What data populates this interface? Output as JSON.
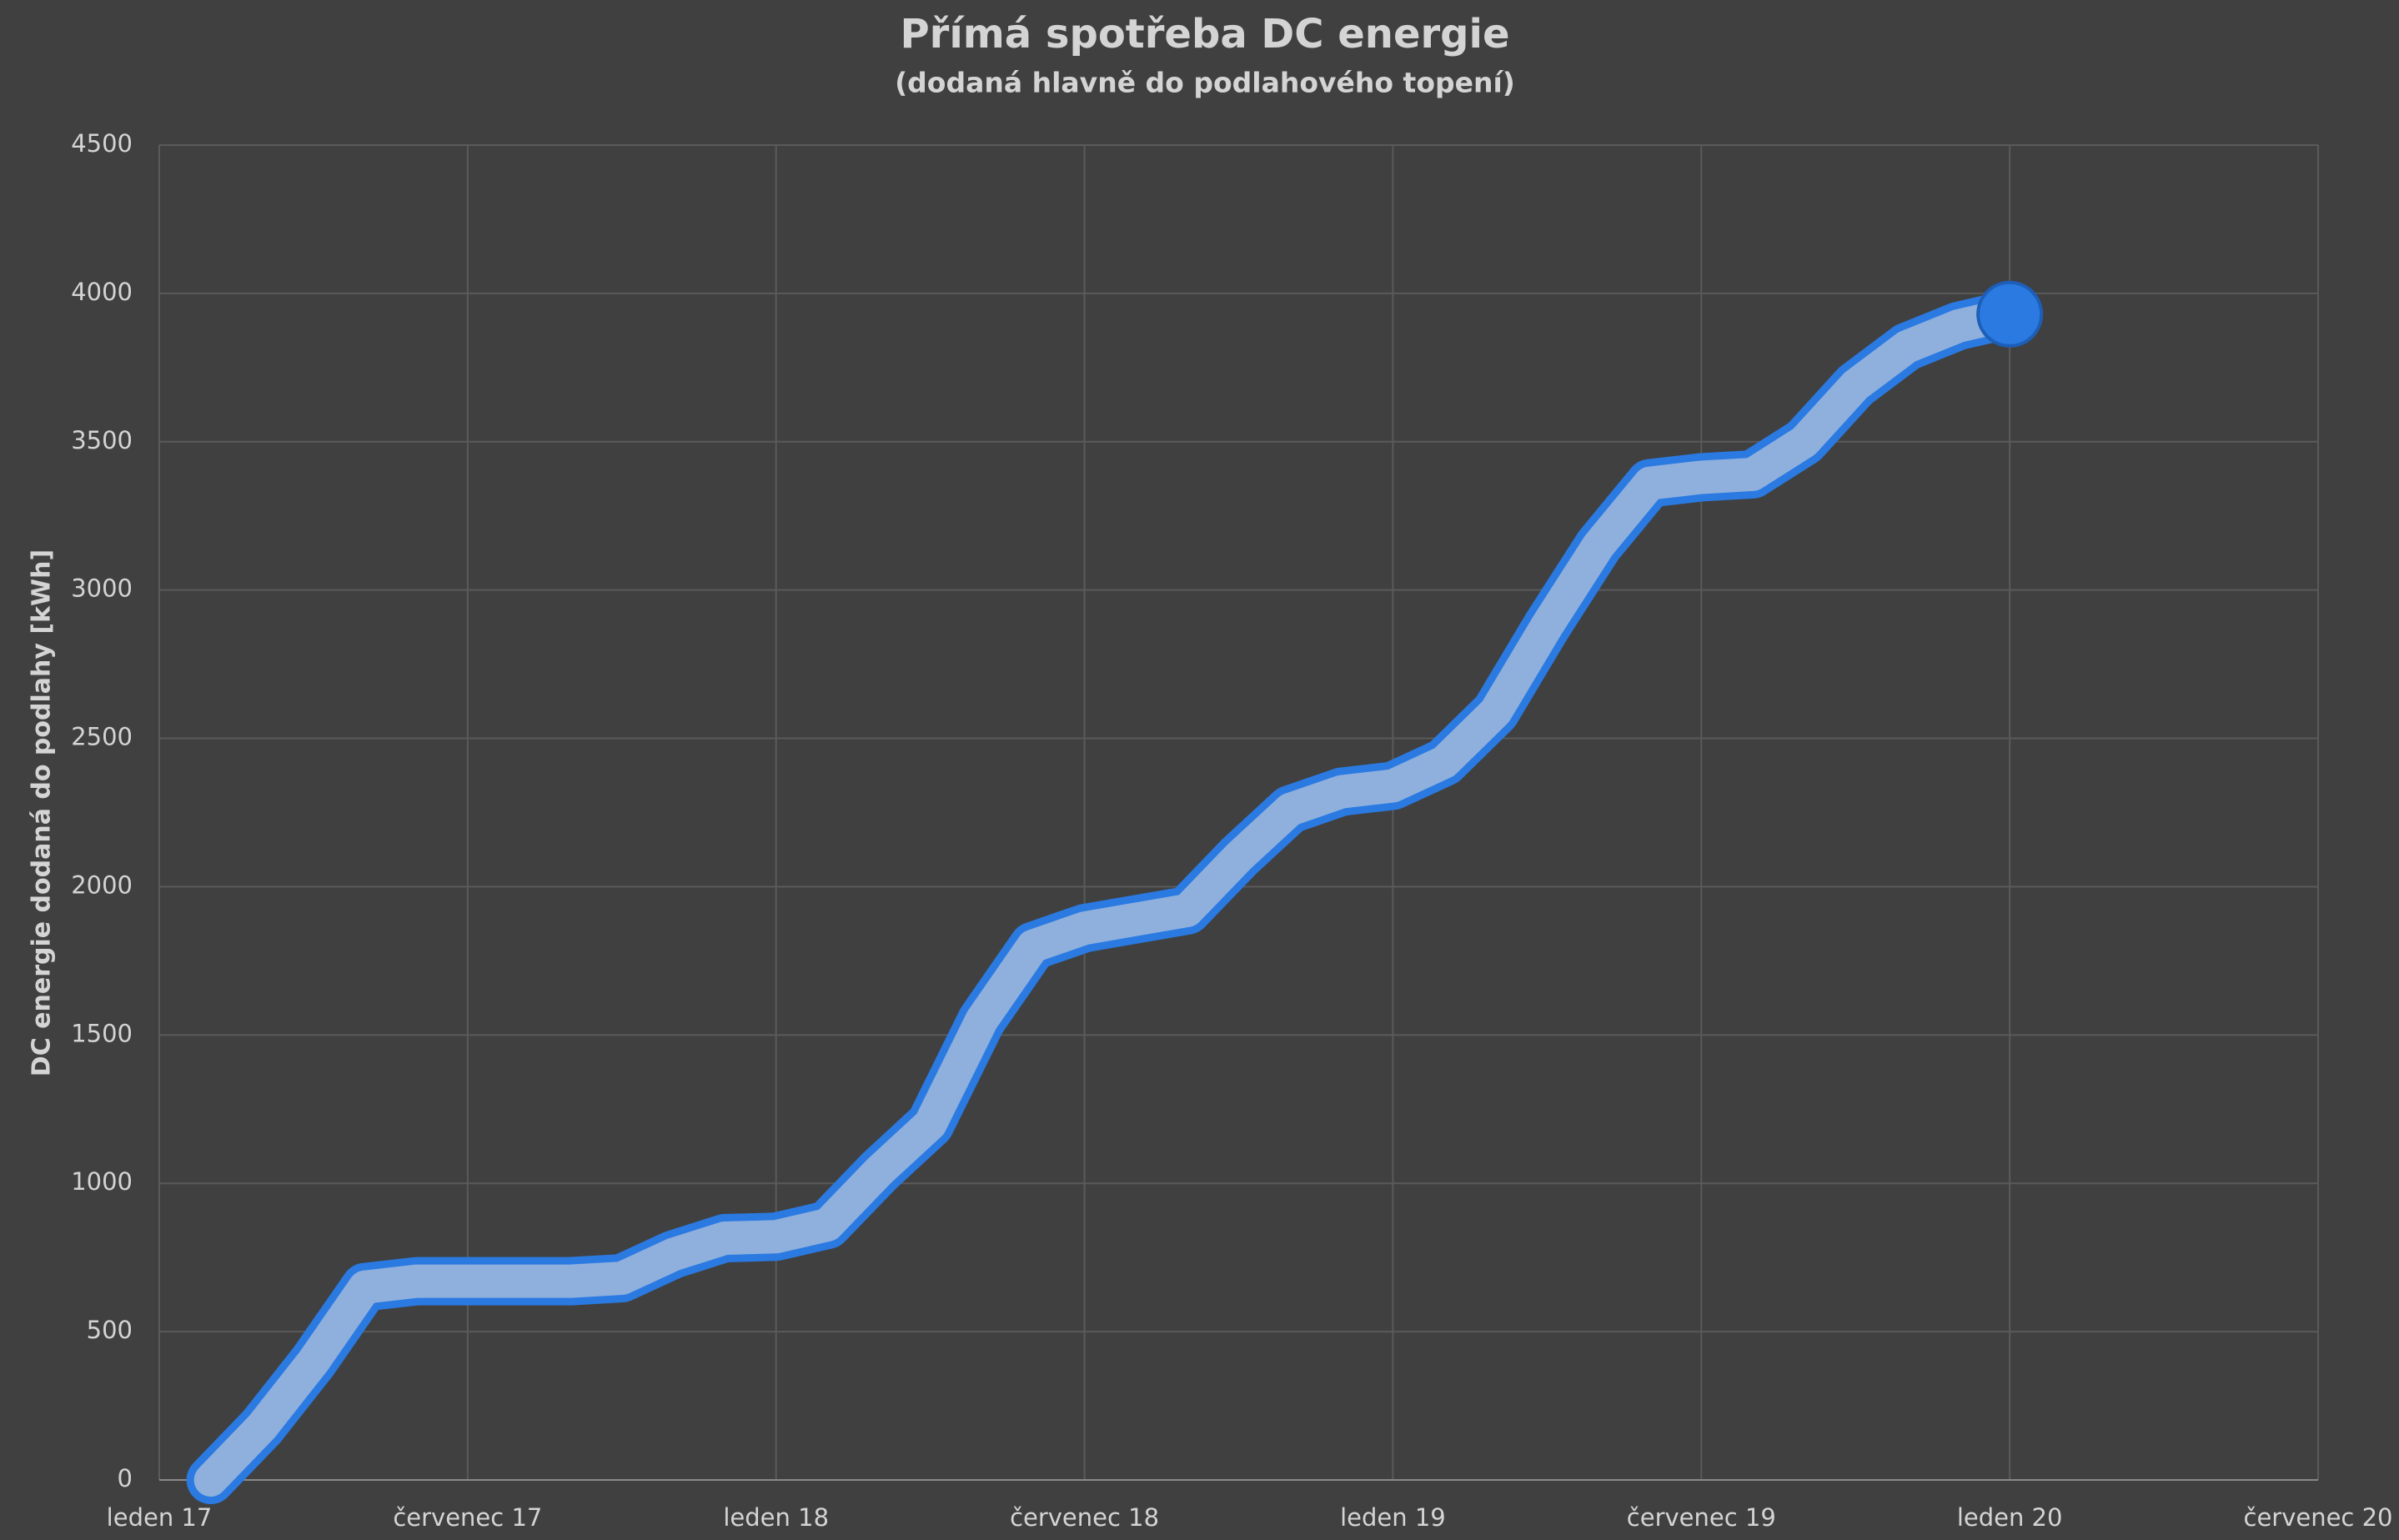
{
  "chart_data": {
    "type": "line",
    "title": "Přímá spotřeba DC energie",
    "subtitle": "(dodaná hlavně do podlahového topení)",
    "y_label": "DC energie dodaná do podlahy [kWh]",
    "x": [
      "2017-02",
      "2017-03",
      "2017-04",
      "2017-05",
      "2017-06",
      "2017-07",
      "2017-08",
      "2017-09",
      "2017-10",
      "2017-11",
      "2017-12",
      "2018-01",
      "2018-02",
      "2018-03",
      "2018-04",
      "2018-05",
      "2018-06",
      "2018-07",
      "2018-08",
      "2018-09",
      "2018-10",
      "2018-11",
      "2018-12",
      "2019-01",
      "2019-02",
      "2019-03",
      "2019-04",
      "2019-05",
      "2019-06",
      "2019-07",
      "2019-08",
      "2019-09",
      "2019-10",
      "2019-11",
      "2019-12",
      "2020-01"
    ],
    "series": [
      {
        "color": "#8fb0dd",
        "values": [
          0,
          180,
          400,
          650,
          670,
          670,
          670,
          670,
          680,
          760,
          815,
          820,
          860,
          1040,
          1200,
          1550,
          1800,
          1860,
          1890,
          1920,
          2100,
          2260,
          2320,
          2340,
          2420,
          2590,
          2880,
          3150,
          3360,
          3380,
          3390,
          3500,
          3690,
          3820,
          3890,
          3930
        ]
      }
    ],
    "outline_color": "#2a7ae2",
    "xlim": [
      "2017-01",
      "2020-07"
    ],
    "xticks": [
      {
        "value": "2017-01",
        "label": "leden 17"
      },
      {
        "value": "2017-07",
        "label": "červenec 17"
      },
      {
        "value": "2018-01",
        "label": "leden 18"
      },
      {
        "value": "2018-07",
        "label": "červenec 18"
      },
      {
        "value": "2019-01",
        "label": "leden 19"
      },
      {
        "value": "2019-07",
        "label": "červenec 19"
      },
      {
        "value": "2020-01",
        "label": "leden 20"
      },
      {
        "value": "2020-07",
        "label": "červenec 20"
      }
    ],
    "ylim": [
      0,
      4500
    ],
    "yticks": [
      0,
      500,
      1000,
      1500,
      2000,
      2500,
      3000,
      3500,
      4000,
      4500
    ],
    "grid": true
  }
}
